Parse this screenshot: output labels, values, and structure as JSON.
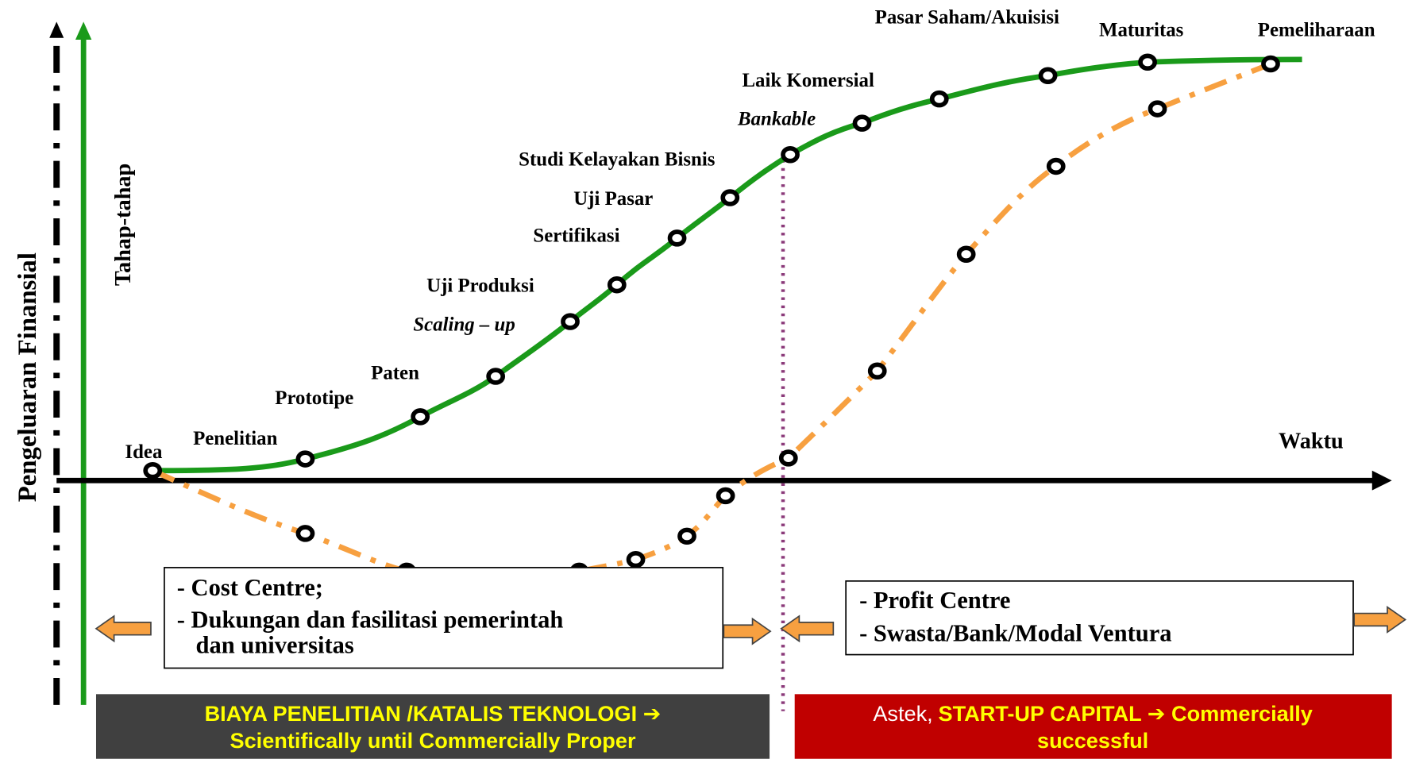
{
  "axes": {
    "y_label": "Pengeluaran Finansial",
    "stage_label": "Tahap-tahap",
    "x_label": "Waktu"
  },
  "stages": [
    "Idea",
    "Penelitian",
    "Prototipe",
    "Paten",
    "Scaling – up",
    "Uji Produksi",
    "Sertifikasi",
    "Uji Pasar",
    "Studi Kelayakan Bisnis",
    "Bankable",
    "Laik Komersial",
    "Pasar Saham/Akuisisi",
    "Maturitas",
    "Pemeliharaan"
  ],
  "boxes": {
    "cost": [
      "- Cost Centre;",
      "- Dukungan dan fasilitasi pemerintah",
      "dan universitas"
    ],
    "profit": [
      "- Profit Centre",
      "- Swasta/Bank/Modal Ventura"
    ]
  },
  "banners": {
    "left": [
      "BIAYA PENELITIAN /KATALIS TEKNOLOGI ➔",
      "Scientifically until Commercially Proper"
    ],
    "right": {
      "prefix": "Astek,",
      "line1": "START-UP CAPITAL ➔ Commercially",
      "line2": "successful"
    }
  }
}
